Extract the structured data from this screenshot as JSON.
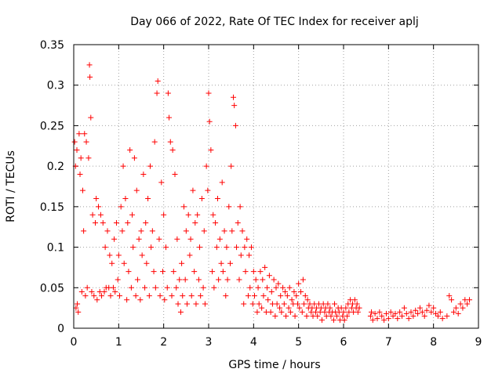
{
  "chart_data": {
    "type": "scatter",
    "title": "Day 066 of 2022, Rate Of TEC Index for receiver aplj",
    "xlabel": "GPS time / hours",
    "ylabel": "ROTI / TECUs",
    "xlim": [
      0,
      9
    ],
    "ylim": [
      0,
      0.35
    ],
    "xticks": [
      "0",
      "1",
      "2",
      "3",
      "4",
      "5",
      "6",
      "7",
      "8",
      "9"
    ],
    "yticks": [
      "0",
      "0.05",
      "0.1",
      "0.15",
      "0.2",
      "0.25",
      "0.3",
      "0.35"
    ],
    "grid": true,
    "marker": "+",
    "color": "#ff0000",
    "series": [
      {
        "name": "ROTI",
        "points": [
          [
            0.02,
            0.23
          ],
          [
            0.04,
            0.2
          ],
          [
            0.05,
            0.025
          ],
          [
            0.07,
            0.22
          ],
          [
            0.08,
            0.03
          ],
          [
            0.1,
            0.02
          ],
          [
            0.12,
            0.24
          ],
          [
            0.14,
            0.19
          ],
          [
            0.16,
            0.21
          ],
          [
            0.18,
            0.045
          ],
          [
            0.2,
            0.17
          ],
          [
            0.22,
            0.12
          ],
          [
            0.24,
            0.24
          ],
          [
            0.26,
            0.04
          ],
          [
            0.28,
            0.23
          ],
          [
            0.3,
            0.05
          ],
          [
            0.33,
            0.21
          ],
          [
            0.35,
            0.325
          ],
          [
            0.36,
            0.31
          ],
          [
            0.38,
            0.26
          ],
          [
            0.4,
            0.045
          ],
          [
            0.42,
            0.14
          ],
          [
            0.45,
            0.04
          ],
          [
            0.48,
            0.13
          ],
          [
            0.5,
            0.16
          ],
          [
            0.52,
            0.035
          ],
          [
            0.55,
            0.15
          ],
          [
            0.58,
            0.045
          ],
          [
            0.6,
            0.14
          ],
          [
            0.62,
            0.04
          ],
          [
            0.65,
            0.13
          ],
          [
            0.68,
            0.045
          ],
          [
            0.7,
            0.1
          ],
          [
            0.72,
            0.05
          ],
          [
            0.75,
            0.12
          ],
          [
            0.78,
            0.05
          ],
          [
            0.8,
            0.09
          ],
          [
            0.82,
            0.04
          ],
          [
            0.85,
            0.08
          ],
          [
            0.88,
            0.05
          ],
          [
            0.9,
            0.11
          ],
          [
            0.92,
            0.045
          ],
          [
            0.95,
            0.13
          ],
          [
            0.98,
            0.06
          ],
          [
            1.0,
            0.09
          ],
          [
            1.02,
            0.04
          ],
          [
            1.05,
            0.15
          ],
          [
            1.08,
            0.12
          ],
          [
            1.1,
            0.2
          ],
          [
            1.12,
            0.08
          ],
          [
            1.15,
            0.16
          ],
          [
            1.18,
            0.035
          ],
          [
            1.2,
            0.13
          ],
          [
            1.22,
            0.07
          ],
          [
            1.25,
            0.22
          ],
          [
            1.28,
            0.05
          ],
          [
            1.3,
            0.14
          ],
          [
            1.32,
            0.1
          ],
          [
            1.35,
            0.21
          ],
          [
            1.38,
            0.04
          ],
          [
            1.4,
            0.17
          ],
          [
            1.42,
            0.06
          ],
          [
            1.45,
            0.11
          ],
          [
            1.48,
            0.035
          ],
          [
            1.5,
            0.12
          ],
          [
            1.52,
            0.09
          ],
          [
            1.55,
            0.19
          ],
          [
            1.58,
            0.05
          ],
          [
            1.6,
            0.13
          ],
          [
            1.62,
            0.08
          ],
          [
            1.65,
            0.16
          ],
          [
            1.68,
            0.04
          ],
          [
            1.7,
            0.2
          ],
          [
            1.72,
            0.1
          ],
          [
            1.75,
            0.12
          ],
          [
            1.78,
            0.07
          ],
          [
            1.8,
            0.23
          ],
          [
            1.82,
            0.05
          ],
          [
            1.85,
            0.29
          ],
          [
            1.87,
            0.305
          ],
          [
            1.9,
            0.11
          ],
          [
            1.92,
            0.04
          ],
          [
            1.95,
            0.18
          ],
          [
            1.98,
            0.07
          ],
          [
            2.0,
            0.14
          ],
          [
            2.02,
            0.035
          ],
          [
            2.05,
            0.1
          ],
          [
            2.08,
            0.05
          ],
          [
            2.1,
            0.29
          ],
          [
            2.12,
            0.26
          ],
          [
            2.15,
            0.23
          ],
          [
            2.18,
            0.04
          ],
          [
            2.2,
            0.22
          ],
          [
            2.22,
            0.07
          ],
          [
            2.25,
            0.19
          ],
          [
            2.28,
            0.05
          ],
          [
            2.3,
            0.11
          ],
          [
            2.32,
            0.03
          ],
          [
            2.35,
            0.06
          ],
          [
            2.38,
            0.02
          ],
          [
            2.4,
            0.08
          ],
          [
            2.42,
            0.04
          ],
          [
            2.45,
            0.15
          ],
          [
            2.48,
            0.06
          ],
          [
            2.5,
            0.12
          ],
          [
            2.52,
            0.03
          ],
          [
            2.55,
            0.14
          ],
          [
            2.58,
            0.09
          ],
          [
            2.6,
            0.11
          ],
          [
            2.62,
            0.04
          ],
          [
            2.65,
            0.17
          ],
          [
            2.68,
            0.07
          ],
          [
            2.7,
            0.13
          ],
          [
            2.72,
            0.03
          ],
          [
            2.75,
            0.14
          ],
          [
            2.78,
            0.06
          ],
          [
            2.8,
            0.1
          ],
          [
            2.82,
            0.04
          ],
          [
            2.85,
            0.16
          ],
          [
            2.88,
            0.05
          ],
          [
            2.9,
            0.12
          ],
          [
            2.92,
            0.03
          ],
          [
            2.95,
            0.2
          ],
          [
            2.98,
            0.17
          ],
          [
            3.0,
            0.29
          ],
          [
            3.02,
            0.255
          ],
          [
            3.05,
            0.22
          ],
          [
            3.08,
            0.07
          ],
          [
            3.1,
            0.14
          ],
          [
            3.12,
            0.05
          ],
          [
            3.15,
            0.13
          ],
          [
            3.18,
            0.1
          ],
          [
            3.2,
            0.16
          ],
          [
            3.22,
            0.06
          ],
          [
            3.25,
            0.11
          ],
          [
            3.28,
            0.08
          ],
          [
            3.3,
            0.18
          ],
          [
            3.32,
            0.07
          ],
          [
            3.35,
            0.12
          ],
          [
            3.38,
            0.04
          ],
          [
            3.4,
            0.1
          ],
          [
            3.42,
            0.06
          ],
          [
            3.45,
            0.15
          ],
          [
            3.48,
            0.08
          ],
          [
            3.5,
            0.2
          ],
          [
            3.52,
            0.12
          ],
          [
            3.55,
            0.285
          ],
          [
            3.57,
            0.275
          ],
          [
            3.6,
            0.25
          ],
          [
            3.62,
            0.1
          ],
          [
            3.65,
            0.13
          ],
          [
            3.68,
            0.06
          ],
          [
            3.7,
            0.15
          ],
          [
            3.72,
            0.09
          ],
          [
            3.75,
            0.12
          ],
          [
            3.78,
            0.03
          ],
          [
            3.8,
            0.1
          ],
          [
            3.82,
            0.07
          ],
          [
            3.85,
            0.11
          ],
          [
            3.88,
            0.04
          ],
          [
            3.9,
            0.09
          ],
          [
            3.92,
            0.05
          ],
          [
            3.95,
            0.1
          ],
          [
            3.98,
            0.03
          ],
          [
            4.0,
            0.07
          ],
          [
            4.02,
            0.04
          ],
          [
            4.05,
            0.06
          ],
          [
            4.08,
            0.02
          ],
          [
            4.1,
            0.05
          ],
          [
            4.12,
            0.03
          ],
          [
            4.15,
            0.07
          ],
          [
            4.18,
            0.025
          ],
          [
            4.2,
            0.06
          ],
          [
            4.22,
            0.04
          ],
          [
            4.25,
            0.075
          ],
          [
            4.28,
            0.02
          ],
          [
            4.3,
            0.05
          ],
          [
            4.32,
            0.035
          ],
          [
            4.35,
            0.065
          ],
          [
            4.38,
            0.02
          ],
          [
            4.4,
            0.045
          ],
          [
            4.42,
            0.03
          ],
          [
            4.45,
            0.06
          ],
          [
            4.48,
            0.015
          ],
          [
            4.5,
            0.05
          ],
          [
            4.52,
            0.03
          ],
          [
            4.55,
            0.055
          ],
          [
            4.58,
            0.025
          ],
          [
            4.6,
            0.04
          ],
          [
            4.62,
            0.02
          ],
          [
            4.65,
            0.05
          ],
          [
            4.68,
            0.03
          ],
          [
            4.7,
            0.045
          ],
          [
            4.72,
            0.015
          ],
          [
            4.75,
            0.04
          ],
          [
            4.78,
            0.025
          ],
          [
            4.8,
            0.05
          ],
          [
            4.82,
            0.02
          ],
          [
            4.85,
            0.035
          ],
          [
            4.88,
            0.03
          ],
          [
            4.9,
            0.045
          ],
          [
            4.92,
            0.015
          ],
          [
            4.95,
            0.04
          ],
          [
            4.98,
            0.03
          ],
          [
            5.0,
            0.055
          ],
          [
            5.02,
            0.025
          ],
          [
            5.05,
            0.045
          ],
          [
            5.08,
            0.02
          ],
          [
            5.1,
            0.06
          ],
          [
            5.12,
            0.03
          ],
          [
            5.15,
            0.04
          ],
          [
            5.18,
            0.015
          ],
          [
            5.2,
            0.035
          ],
          [
            5.22,
            0.025
          ],
          [
            5.25,
            0.03
          ],
          [
            5.28,
            0.02
          ],
          [
            5.3,
            0.025
          ],
          [
            5.32,
            0.015
          ],
          [
            5.35,
            0.03
          ],
          [
            5.38,
            0.02
          ],
          [
            5.4,
            0.025
          ],
          [
            5.42,
            0.015
          ],
          [
            5.45,
            0.03
          ],
          [
            5.48,
            0.02
          ],
          [
            5.5,
            0.025
          ],
          [
            5.52,
            0.01
          ],
          [
            5.55,
            0.03
          ],
          [
            5.58,
            0.02
          ],
          [
            5.6,
            0.025
          ],
          [
            5.62,
            0.015
          ],
          [
            5.65,
            0.03
          ],
          [
            5.68,
            0.02
          ],
          [
            5.7,
            0.025
          ],
          [
            5.72,
            0.015
          ],
          [
            5.75,
            0.02
          ],
          [
            5.78,
            0.01
          ],
          [
            5.8,
            0.03
          ],
          [
            5.82,
            0.02
          ],
          [
            5.85,
            0.015
          ],
          [
            5.88,
            0.025
          ],
          [
            5.9,
            0.02
          ],
          [
            5.92,
            0.01
          ],
          [
            5.95,
            0.025
          ],
          [
            5.98,
            0.015
          ],
          [
            6.0,
            0.02
          ],
          [
            6.02,
            0.01
          ],
          [
            6.05,
            0.025
          ],
          [
            6.08,
            0.015
          ],
          [
            6.1,
            0.03
          ],
          [
            6.12,
            0.02
          ],
          [
            6.15,
            0.035
          ],
          [
            6.18,
            0.025
          ],
          [
            6.2,
            0.03
          ],
          [
            6.22,
            0.02
          ],
          [
            6.25,
            0.035
          ],
          [
            6.28,
            0.025
          ],
          [
            6.3,
            0.03
          ],
          [
            6.32,
            0.02
          ],
          [
            6.35,
            0.025
          ],
          [
            6.6,
            0.015
          ],
          [
            6.62,
            0.02
          ],
          [
            6.65,
            0.01
          ],
          [
            6.7,
            0.018
          ],
          [
            6.75,
            0.012
          ],
          [
            6.8,
            0.02
          ],
          [
            6.85,
            0.015
          ],
          [
            6.9,
            0.01
          ],
          [
            6.95,
            0.018
          ],
          [
            7.0,
            0.012
          ],
          [
            7.05,
            0.02
          ],
          [
            7.1,
            0.015
          ],
          [
            7.15,
            0.018
          ],
          [
            7.2,
            0.012
          ],
          [
            7.25,
            0.02
          ],
          [
            7.3,
            0.015
          ],
          [
            7.35,
            0.025
          ],
          [
            7.4,
            0.018
          ],
          [
            7.45,
            0.012
          ],
          [
            7.5,
            0.02
          ],
          [
            7.55,
            0.015
          ],
          [
            7.6,
            0.022
          ],
          [
            7.65,
            0.018
          ],
          [
            7.7,
            0.025
          ],
          [
            7.75,
            0.02
          ],
          [
            7.8,
            0.015
          ],
          [
            7.85,
            0.022
          ],
          [
            7.9,
            0.028
          ],
          [
            7.95,
            0.02
          ],
          [
            8.0,
            0.025
          ],
          [
            8.05,
            0.018
          ],
          [
            8.1,
            0.015
          ],
          [
            8.15,
            0.02
          ],
          [
            8.2,
            0.012
          ],
          [
            8.3,
            0.015
          ],
          [
            8.35,
            0.04
          ],
          [
            8.4,
            0.035
          ],
          [
            8.45,
            0.02
          ],
          [
            8.5,
            0.025
          ],
          [
            8.55,
            0.018
          ],
          [
            8.6,
            0.03
          ],
          [
            8.65,
            0.025
          ],
          [
            8.7,
            0.035
          ],
          [
            8.75,
            0.03
          ],
          [
            8.8,
            0.035
          ]
        ]
      }
    ]
  }
}
